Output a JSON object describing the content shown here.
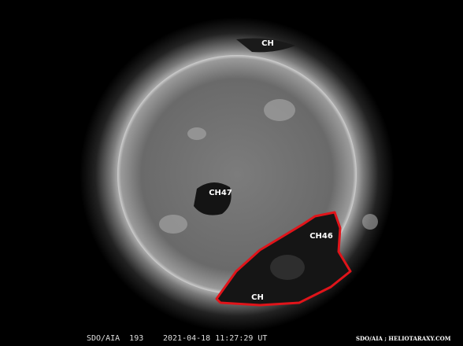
{
  "labels": [
    {
      "text": "CH"
    },
    {
      "text": "CH47"
    },
    {
      "text": "CH46"
    },
    {
      "text": "CH"
    }
  ],
  "footer": {
    "instrument": "SDO/AIA  193",
    "timestamp": "2021-04-18 11:27:29 UT",
    "credit": "SDO/AIA ; HELIOTARAXY.COM"
  }
}
